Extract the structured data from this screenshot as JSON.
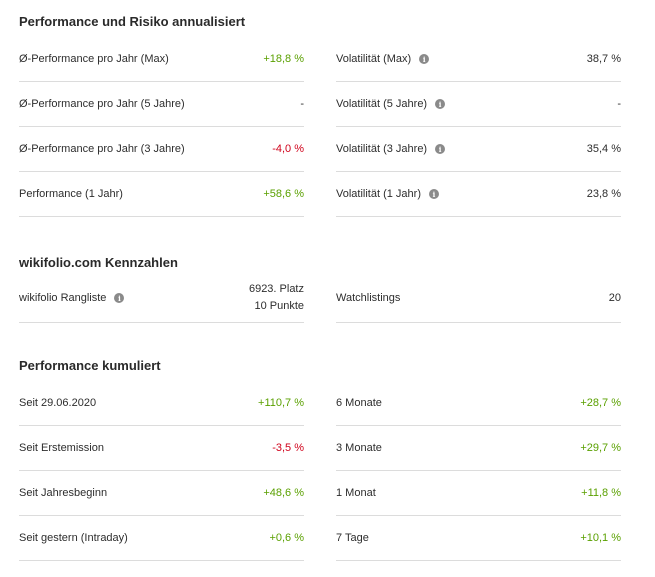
{
  "section1": {
    "title": "Performance und Risiko annualisiert",
    "left": [
      {
        "label": "Ø-Performance pro Jahr (Max)",
        "value": "+18,8 %",
        "tone": "pos"
      },
      {
        "label": "Ø-Performance pro Jahr (5 Jahre)",
        "value": "-",
        "tone": "neutral"
      },
      {
        "label": "Ø-Performance pro Jahr (3 Jahre)",
        "value": "-4,0 %",
        "tone": "neg"
      },
      {
        "label": "Performance (1 Jahr)",
        "value": "+58,6 %",
        "tone": "pos"
      }
    ],
    "right": [
      {
        "label": "Volatilität (Max)",
        "value": "38,7 %",
        "tone": "neutral"
      },
      {
        "label": "Volatilität (5 Jahre)",
        "value": "-",
        "tone": "neutral"
      },
      {
        "label": "Volatilität (3 Jahre)",
        "value": "35,4 %",
        "tone": "neutral"
      },
      {
        "label": "Volatilität (1 Jahr)",
        "value": "23,8 %",
        "tone": "neutral"
      }
    ]
  },
  "section2": {
    "title": "wikifolio.com Kennzahlen",
    "left": {
      "label": "wikifolio Rangliste",
      "value_line1": "6923. Platz",
      "value_line2": "10 Punkte"
    },
    "right": {
      "label": "Watchlistings",
      "value": "20"
    }
  },
  "section3": {
    "title": "Performance kumuliert",
    "left": [
      {
        "label": "Seit 29.06.2020",
        "value": "+110,7 %",
        "tone": "pos"
      },
      {
        "label": "Seit Erstemission",
        "value": "-3,5 %",
        "tone": "neg"
      },
      {
        "label": "Seit Jahresbeginn",
        "value": "+48,6 %",
        "tone": "pos"
      },
      {
        "label": "Seit gestern (Intraday)",
        "value": "+0,6 %",
        "tone": "pos"
      }
    ],
    "right": [
      {
        "label": "6 Monate",
        "value": "+28,7 %",
        "tone": "pos"
      },
      {
        "label": "3 Monate",
        "value": "+29,7 %",
        "tone": "pos"
      },
      {
        "label": "1 Monat",
        "value": "+11,8 %",
        "tone": "pos"
      },
      {
        "label": "7 Tage",
        "value": "+10,1 %",
        "tone": "pos"
      }
    ]
  },
  "info_icon_glyph": "i",
  "colors": {
    "positive": "#5aa000",
    "negative": "#d0021b",
    "divider": "#dcdcdc"
  }
}
